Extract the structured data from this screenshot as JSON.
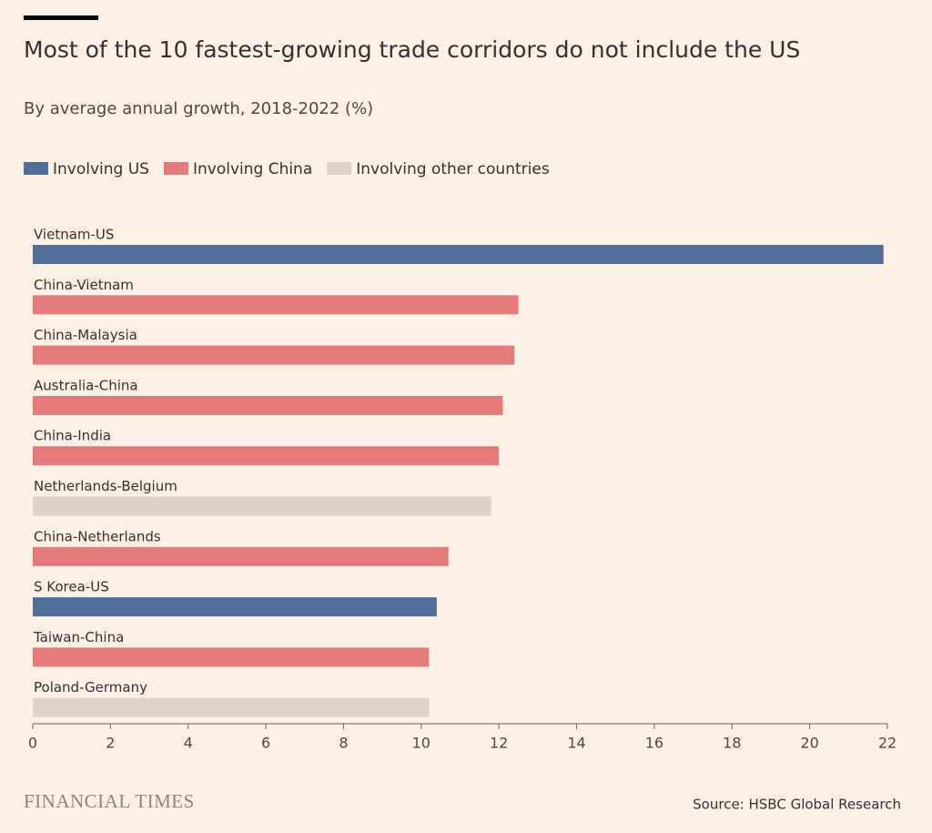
{
  "chart_data": {
    "type": "bar",
    "orientation": "horizontal",
    "title": "Most of the 10 fastest-growing trade corridors do not include the US",
    "subtitle": "By average annual growth, 2018-2022 (%)",
    "categories": [
      "Vietnam-US",
      "China-Vietnam",
      "China-Malaysia",
      "Australia-China",
      "China-India",
      "Netherlands-Belgium",
      "China-Netherlands",
      "S Korea-US",
      "Taiwan-China",
      "Poland-Germany"
    ],
    "series": [
      {
        "name": "Involving US",
        "color": "#4f6f98",
        "values": [
          21.9,
          null,
          null,
          null,
          null,
          null,
          null,
          10.4,
          null,
          null
        ]
      },
      {
        "name": "Involving China",
        "color": "#e57a7a",
        "values": [
          null,
          12.5,
          12.4,
          12.1,
          12.0,
          null,
          10.7,
          null,
          10.2,
          null
        ]
      },
      {
        "name": "Involving other countries",
        "color": "#ddd3c8",
        "values": [
          null,
          null,
          null,
          null,
          null,
          11.8,
          null,
          null,
          null,
          10.2
        ]
      }
    ],
    "xlim": [
      0,
      22
    ],
    "xticks": [
      0,
      2,
      4,
      6,
      8,
      10,
      12,
      14,
      16,
      18,
      20,
      22
    ],
    "source": "Source: HSBC Global Research",
    "logo": "FINANCIAL TIMES"
  }
}
